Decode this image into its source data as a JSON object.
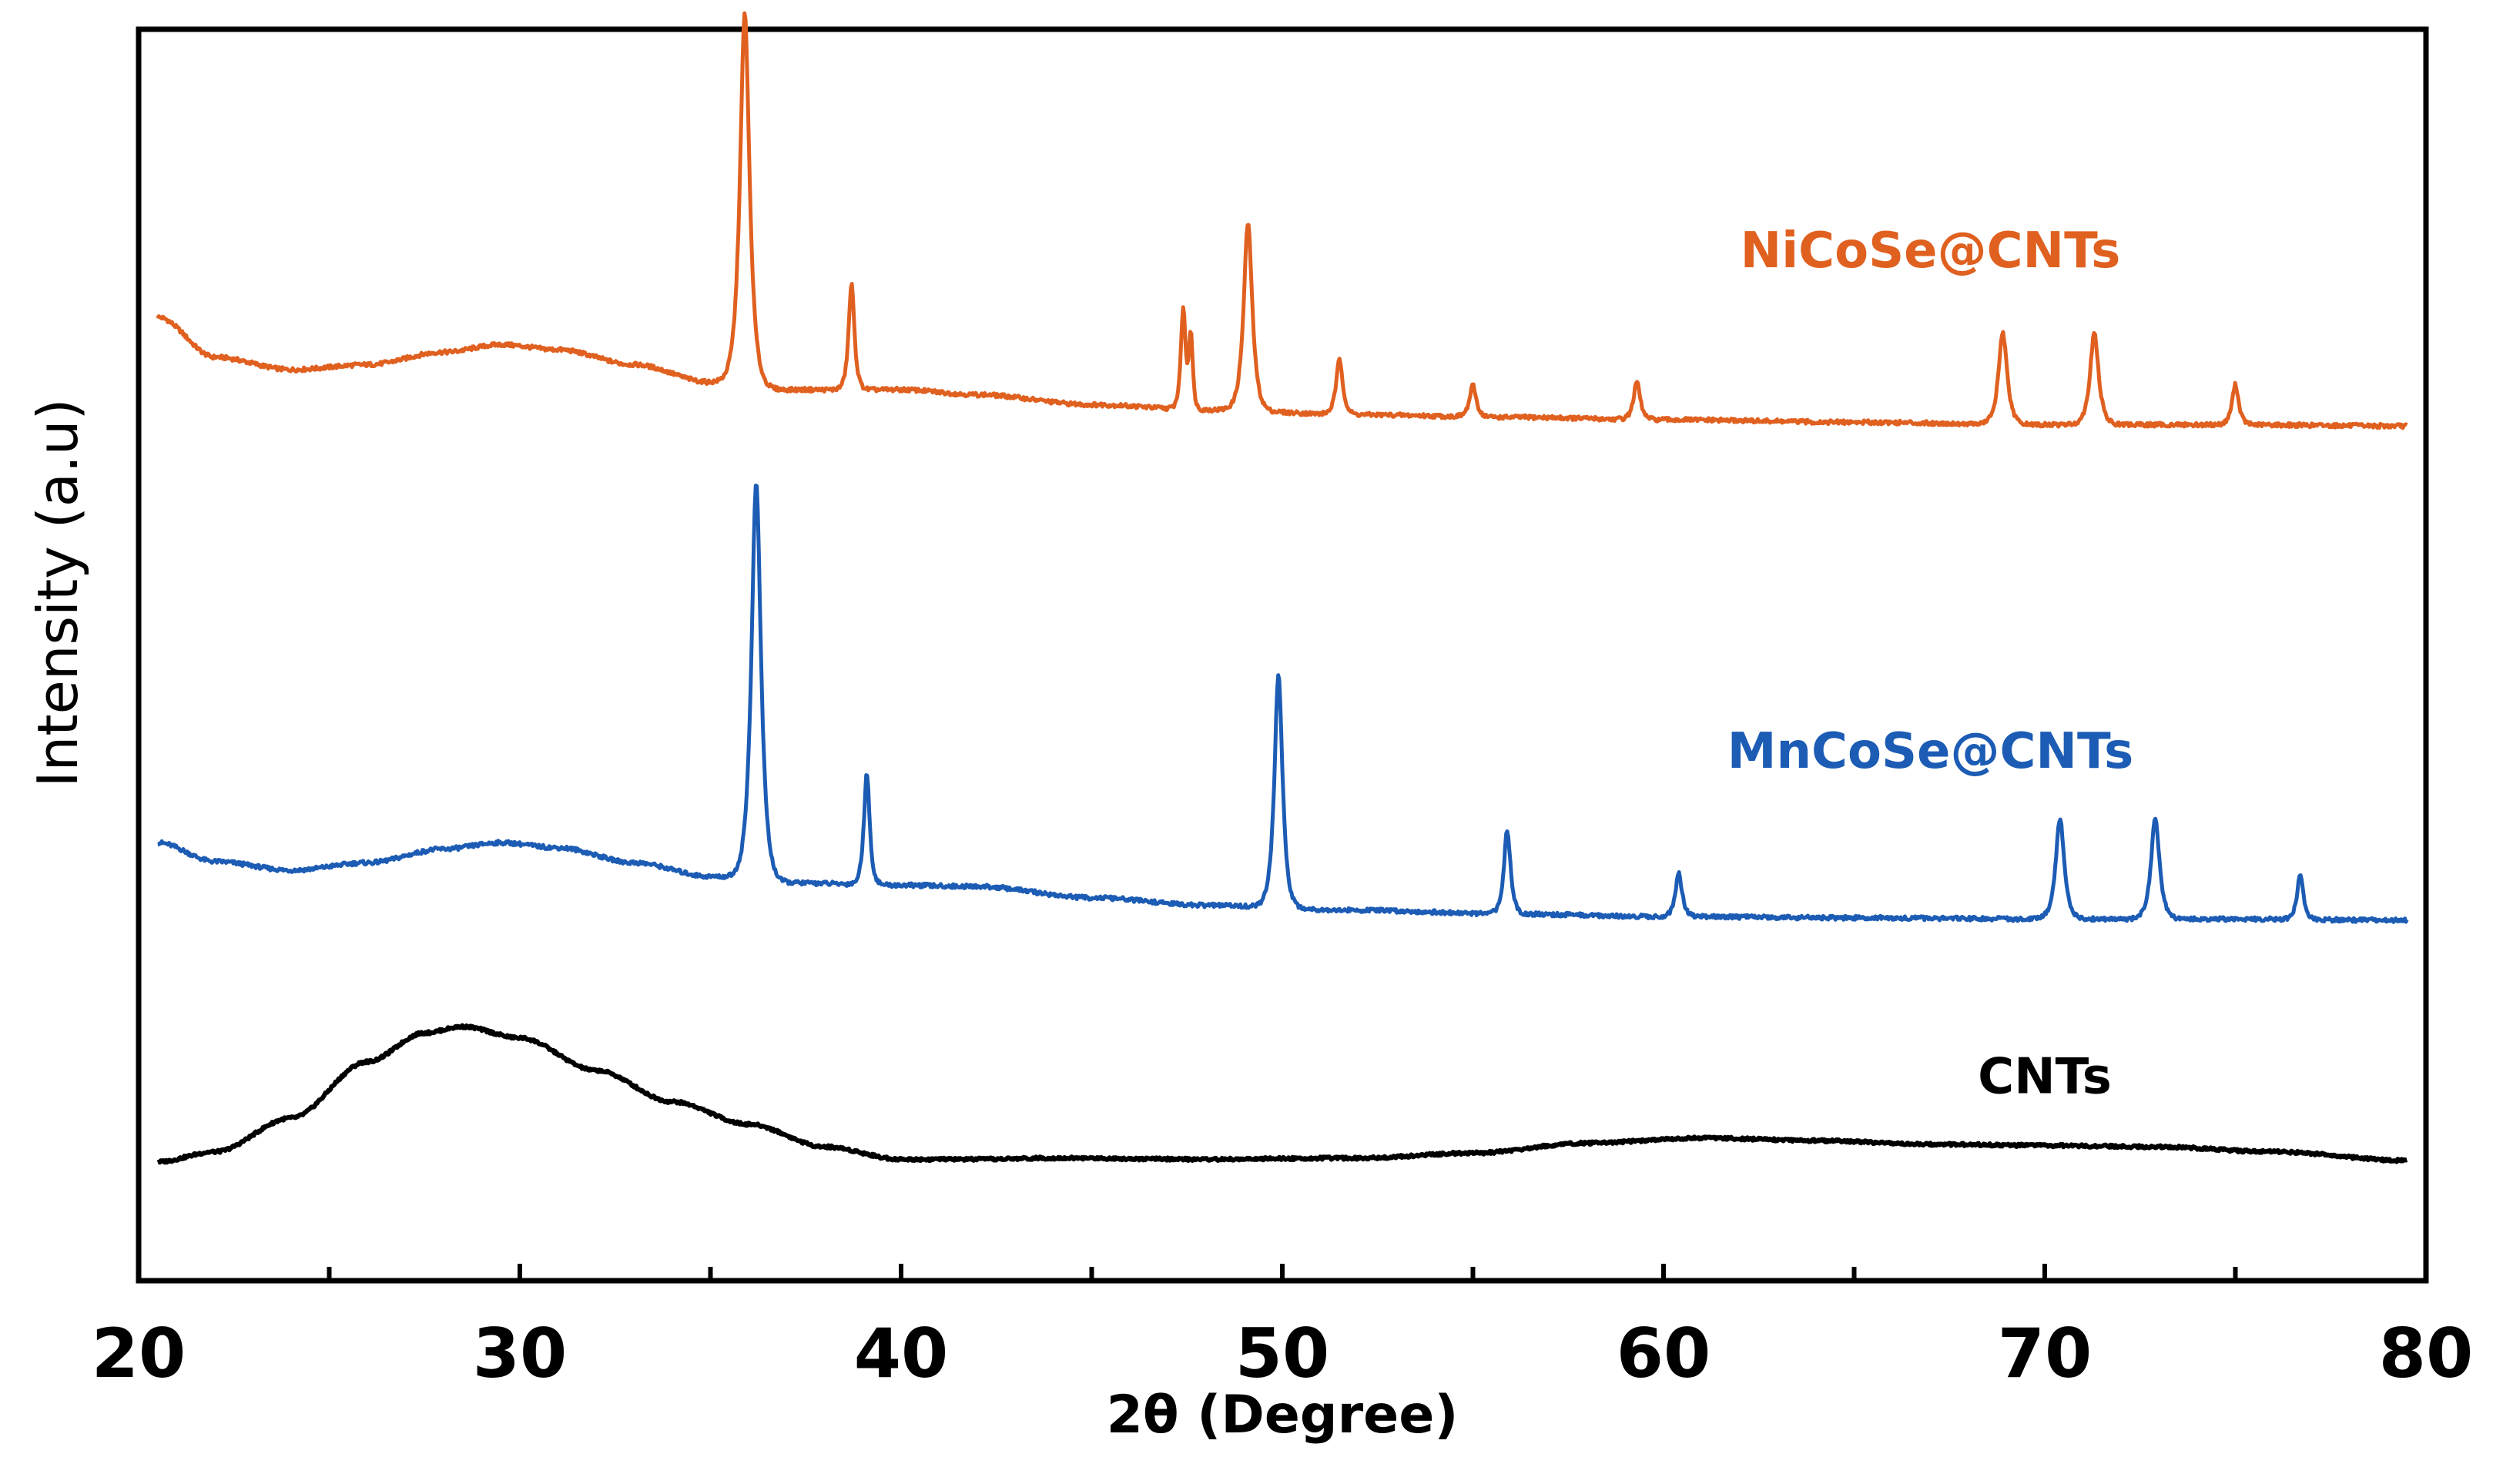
{
  "chart_data": {
    "type": "line",
    "title": "",
    "xlabel": "2θ (Degree)",
    "ylabel": "Intensity (a.u)",
    "xlim": [
      20,
      80
    ],
    "x_ticks": [
      20,
      30,
      40,
      50,
      60,
      70,
      80
    ],
    "x_minor_ticks": [
      25,
      35,
      45,
      55,
      65,
      75
    ],
    "y_ticks_shown": false,
    "grid": false,
    "legend": "inline labels beside each curve",
    "series": [
      {
        "name": "NiCoSe@CNTs",
        "color": "#E06020",
        "baseline": [
          [
            20.5,
            0.77
          ],
          [
            22,
            0.738
          ],
          [
            24,
            0.728
          ],
          [
            26,
            0.732
          ],
          [
            28,
            0.742
          ],
          [
            29.5,
            0.748
          ],
          [
            31,
            0.744
          ],
          [
            33,
            0.732
          ],
          [
            35,
            0.718
          ],
          [
            37,
            0.712
          ],
          [
            40,
            0.712
          ],
          [
            42,
            0.708
          ],
          [
            45,
            0.7
          ],
          [
            48,
            0.696
          ],
          [
            52,
            0.692
          ],
          [
            56,
            0.69
          ],
          [
            60,
            0.688
          ],
          [
            65,
            0.686
          ],
          [
            70,
            0.684
          ],
          [
            75,
            0.684
          ],
          [
            79.5,
            0.683
          ]
        ],
        "peaks": [
          {
            "center": 35.9,
            "height": 0.297,
            "width": 0.2
          },
          {
            "center": 38.7,
            "height": 0.085,
            "width": 0.12
          },
          {
            "center": 47.4,
            "height": 0.08,
            "width": 0.1
          },
          {
            "center": 47.6,
            "height": 0.06,
            "width": 0.08
          },
          {
            "center": 49.1,
            "height": 0.15,
            "width": 0.18
          },
          {
            "center": 51.5,
            "height": 0.044,
            "width": 0.14
          },
          {
            "center": 55.0,
            "height": 0.025,
            "width": 0.14
          },
          {
            "center": 59.3,
            "height": 0.03,
            "width": 0.14
          },
          {
            "center": 68.9,
            "height": 0.073,
            "width": 0.18
          },
          {
            "center": 71.3,
            "height": 0.073,
            "width": 0.18
          },
          {
            "center": 75.0,
            "height": 0.032,
            "width": 0.14
          }
        ]
      },
      {
        "name": "MnCoSe@CNTs",
        "color": "#1C5CB4",
        "baseline": [
          [
            20.5,
            0.35
          ],
          [
            22,
            0.335
          ],
          [
            24,
            0.328
          ],
          [
            26,
            0.334
          ],
          [
            28,
            0.345
          ],
          [
            29.5,
            0.35
          ],
          [
            31,
            0.346
          ],
          [
            33,
            0.334
          ],
          [
            35,
            0.323
          ],
          [
            37,
            0.318
          ],
          [
            40,
            0.316
          ],
          [
            42,
            0.315
          ],
          [
            45,
            0.306
          ],
          [
            48,
            0.3
          ],
          [
            52,
            0.296
          ],
          [
            56,
            0.293
          ],
          [
            60,
            0.291
          ],
          [
            65,
            0.29
          ],
          [
            70,
            0.289
          ],
          [
            75,
            0.289
          ],
          [
            79.5,
            0.288
          ]
        ],
        "peaks": [
          {
            "center": 36.2,
            "height": 0.318,
            "width": 0.2
          },
          {
            "center": 39.1,
            "height": 0.09,
            "width": 0.12
          },
          {
            "center": 49.9,
            "height": 0.186,
            "width": 0.17
          },
          {
            "center": 55.9,
            "height": 0.067,
            "width": 0.14
          },
          {
            "center": 60.4,
            "height": 0.034,
            "width": 0.14
          },
          {
            "center": 70.4,
            "height": 0.08,
            "width": 0.18
          },
          {
            "center": 72.9,
            "height": 0.08,
            "width": 0.18
          },
          {
            "center": 76.7,
            "height": 0.036,
            "width": 0.13
          }
        ]
      },
      {
        "name": "CNTs",
        "color": "#000000",
        "baseline": [
          [
            20.5,
            0.095
          ],
          [
            22,
            0.103
          ],
          [
            24,
            0.13
          ],
          [
            26,
            0.175
          ],
          [
            27.5,
            0.198
          ],
          [
            28.5,
            0.203
          ],
          [
            30,
            0.194
          ],
          [
            32,
            0.168
          ],
          [
            34,
            0.143
          ],
          [
            36,
            0.125
          ],
          [
            38,
            0.107
          ],
          [
            40,
            0.097
          ],
          [
            42,
            0.097
          ],
          [
            44,
            0.098
          ],
          [
            48,
            0.097
          ],
          [
            52,
            0.098
          ],
          [
            55,
            0.102
          ],
          [
            58,
            0.11
          ],
          [
            61,
            0.114
          ],
          [
            64,
            0.112
          ],
          [
            67,
            0.109
          ],
          [
            70,
            0.108
          ],
          [
            73,
            0.107
          ],
          [
            76,
            0.103
          ],
          [
            79.5,
            0.096
          ]
        ],
        "peaks": []
      }
    ],
    "annotations": [
      {
        "text": "NiCoSe@CNTs",
        "x": 67,
        "y": 0.81,
        "color": "#E06020"
      },
      {
        "text": "MnCoSe@CNTs",
        "x": 67,
        "y": 0.41,
        "color": "#1C5CB4"
      },
      {
        "text": "CNTs",
        "x": 70,
        "y": 0.15,
        "color": "#000000"
      }
    ]
  }
}
